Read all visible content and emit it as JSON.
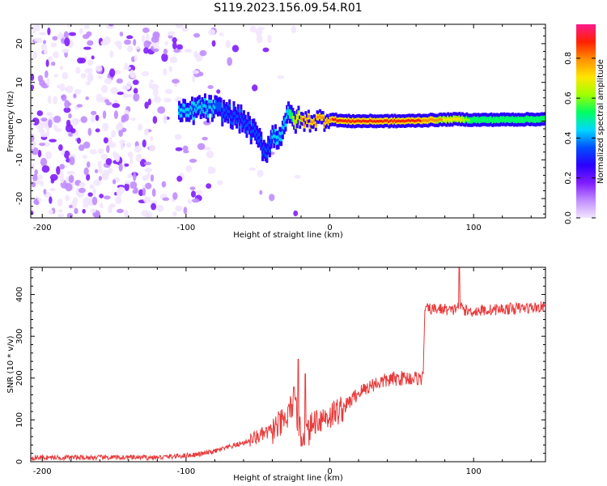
{
  "title": "S119.2023.156.09.54.R01",
  "colors": {
    "snr_line": "#e8393a",
    "background": "#ffffff",
    "axis": "#000000",
    "colormap": [
      "#f2e6ff",
      "#c08cff",
      "#7f1cff",
      "#2a00ff",
      "#0050ff",
      "#00d8ff",
      "#00ff60",
      "#a0ff00",
      "#ffe600",
      "#ff9000",
      "#ff2000",
      "#ff1a8c"
    ]
  },
  "chart_data": [
    {
      "type": "heatmap",
      "xlabel": "Height of straight line (km)",
      "ylabel": "Frequency (Hz)",
      "xlim": [
        -208,
        150
      ],
      "ylim": [
        -25,
        25
      ],
      "xticks": [
        -200,
        -100,
        0,
        100
      ],
      "xtick_labels": [
        "-200",
        "-100",
        "0",
        "100"
      ],
      "yticks": [
        -20,
        -10,
        0,
        10,
        20
      ],
      "ytick_labels": [
        "-20",
        "-10",
        "0",
        "10",
        "20"
      ],
      "colorbar": {
        "label": "Normalized spectral amplitude",
        "range": [
          0.0,
          0.97
        ],
        "ticks": [
          0.0,
          0.2,
          0.4,
          0.6,
          0.8
        ],
        "tick_labels": [
          "0.0",
          "0.2",
          "0.4",
          "0.6",
          "0.8"
        ]
      },
      "signal_ridge": {
        "x": [
          -100,
          -90,
          -80,
          -70,
          -60,
          -50,
          -45,
          -40,
          -35,
          -30,
          -25,
          -20,
          -10,
          0,
          10,
          50,
          90,
          100,
          150
        ],
        "frequency": [
          2.0,
          3.5,
          3.0,
          2.0,
          0.0,
          -4.5,
          -8.0,
          -4.0,
          -4.0,
          1.5,
          0.5,
          0.0,
          0.3,
          0.5,
          0.0,
          0.0,
          0.5,
          0.3,
          0.5
        ],
        "amplitude": [
          0.4,
          0.35,
          0.35,
          0.3,
          0.3,
          0.3,
          0.25,
          0.35,
          0.4,
          0.4,
          0.7,
          0.8,
          0.85,
          0.85,
          0.92,
          0.95,
          0.7,
          0.55,
          0.5
        ]
      }
    },
    {
      "type": "line",
      "xlabel": "Height of straight line (km)",
      "ylabel": "SNR (10 * v/v)",
      "xlim": [
        -208,
        150
      ],
      "ylim": [
        0,
        465
      ],
      "xticks": [
        -200,
        -100,
        0,
        100
      ],
      "xtick_labels": [
        "-200",
        "-100",
        "0",
        "100"
      ],
      "yticks": [
        0,
        100,
        200,
        300,
        400
      ],
      "ytick_labels": [
        "0",
        "100",
        "200",
        "300",
        "400"
      ],
      "series": [
        {
          "x": [
            -208,
            -180,
            -150,
            -120,
            -100,
            -90,
            -80,
            -70,
            -60,
            -50,
            -40,
            -30,
            -25,
            -20,
            -15,
            -10,
            0,
            10,
            20,
            30,
            40,
            50,
            60,
            65,
            66,
            70,
            80,
            85,
            90,
            95,
            100,
            120,
            150
          ],
          "y": [
            10,
            10,
            10,
            10,
            15,
            18,
            25,
            35,
            45,
            60,
            75,
            100,
            150,
            60,
            70,
            100,
            110,
            130,
            165,
            185,
            195,
            200,
            200,
            200,
            365,
            365,
            365,
            360,
            375,
            360,
            360,
            365,
            370
          ]
        }
      ],
      "spikes": {
        "x": [
          -22,
          -17,
          90
        ],
        "y": [
          245,
          210,
          465
        ]
      }
    }
  ]
}
